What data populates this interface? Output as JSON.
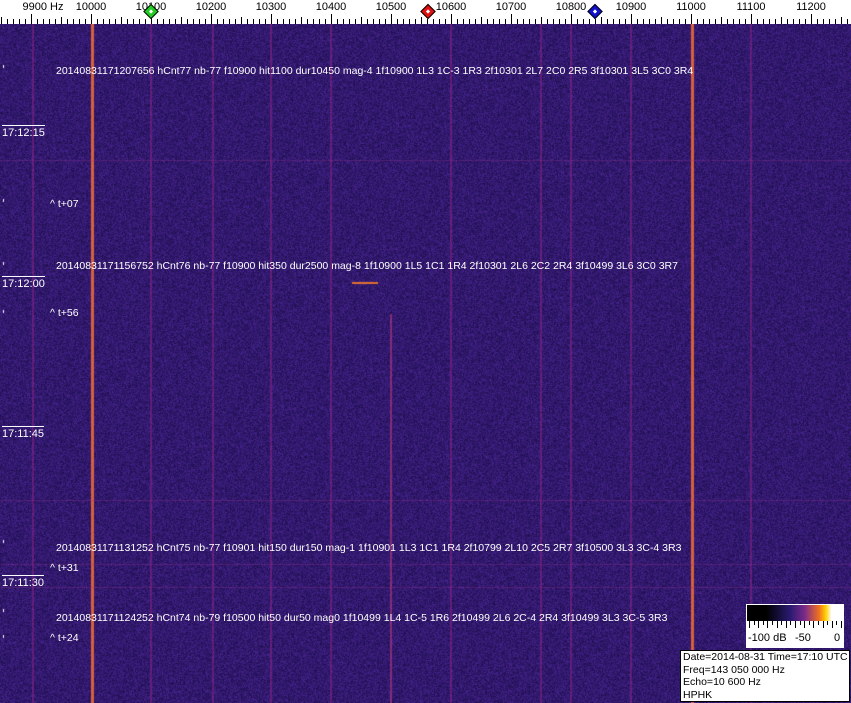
{
  "axis": {
    "unit_label": "9900 Hz",
    "labels": [
      "10000",
      "10100",
      "10200",
      "10300",
      "10400",
      "10500",
      "10600",
      "10700",
      "10800",
      "10900",
      "11000",
      "11100",
      "11200"
    ],
    "markers": [
      {
        "name": "green-marker",
        "freq_hz": 10100,
        "color": "#22cc22"
      },
      {
        "name": "red-marker",
        "freq_hz": 10562,
        "color": "#dd1111"
      },
      {
        "name": "blue-marker",
        "freq_hz": 10840,
        "color": "#1111cc"
      }
    ]
  },
  "times": [
    "17:12:15",
    "17:12:00",
    "17:11:45",
    "17:11:30"
  ],
  "detections": [
    "20140831171207656 hCnt77 nb-77 f10900 hit1100 dur10450 mag-4 1f10900 1L3 1C-3 1R3 2f10301 2L7 2C0 2R5 3f10301 3L5 3C0 3R4",
    "20140831171156752 hCnt76 nb-77 f10900 hit350 dur2500 mag-8 1f10900 1L5 1C1 1R4 2f10301 2L6 2C2 2R4 3f10499 3L6 3C0 3R7",
    "20140831171131252 hCnt75 nb-77 f10901 hit150 dur150 mag-1 1f10901 1L3 1C1 1R4 2f10799 2L10 2C5 2R7 3f10500 3L3 3C-4 3R3",
    "20140831171124252 hCnt74 nb-79 f10500 hit50 dur50 mag0 1f10499 1L4 1C-5 1R6 2f10499 2L6 2C-4 2R4 3f10499 3L3 3C-5 3R3"
  ],
  "offsets": [
    "^ t+07",
    "^ t+56",
    "^ t+31",
    "^ t+24"
  ],
  "colorbar": {
    "labels": [
      "-100 dB",
      "-50",
      "0"
    ]
  },
  "info": {
    "line1": "Date=2014-08-31 Time=17:10 UTC",
    "line2": "Freq=143 050 000 Hz",
    "line3": "Echo=10 600 Hz",
    "line4": "HPHK"
  }
}
